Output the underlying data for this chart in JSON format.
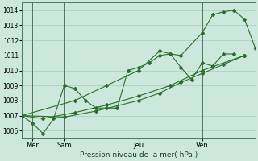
{
  "background_color": "#cce8dd",
  "grid_color": "#aaccbb",
  "line_color": "#2a6e2a",
  "title": "Pression niveau de la mer( hPa )",
  "ylabel_ticks": [
    1006,
    1007,
    1008,
    1009,
    1010,
    1011,
    1012,
    1013,
    1014
  ],
  "ylim": [
    1005.5,
    1014.5
  ],
  "xlim": [
    0,
    22
  ],
  "xticklabels": [
    "Mer",
    "Sam",
    "Jeu",
    "Ven"
  ],
  "xtick_positions": [
    1,
    4,
    11,
    17
  ],
  "vlines": [
    1,
    4,
    11,
    17
  ],
  "series": [
    {
      "x": [
        0,
        1,
        2,
        3,
        4,
        5,
        6,
        7,
        8,
        9,
        10,
        11,
        12,
        13,
        14,
        15,
        16,
        17,
        18,
        19,
        20
      ],
      "y": [
        1007.0,
        1006.5,
        1005.8,
        1006.8,
        1009.0,
        1008.8,
        1008.0,
        1007.5,
        1007.5,
        1007.5,
        1010.0,
        1010.2,
        1010.5,
        1011.0,
        1011.1,
        1010.2,
        1009.4,
        1010.5,
        1010.3,
        1011.1,
        1011.1
      ]
    },
    {
      "x": [
        0,
        2,
        5,
        8,
        11,
        14,
        17,
        21
      ],
      "y": [
        1007.0,
        1006.8,
        1007.2,
        1007.7,
        1008.3,
        1009.0,
        1010.0,
        1011.0
      ]
    },
    {
      "x": [
        0,
        4,
        7,
        11,
        13,
        15,
        17,
        19,
        21
      ],
      "y": [
        1007.0,
        1006.9,
        1007.3,
        1008.0,
        1008.5,
        1009.2,
        1009.8,
        1010.4,
        1011.0
      ]
    },
    {
      "x": [
        0,
        5,
        8,
        11,
        13,
        14,
        15,
        17,
        18,
        19,
        20,
        21,
        22
      ],
      "y": [
        1007.0,
        1008.0,
        1009.0,
        1010.0,
        1011.3,
        1011.1,
        1011.0,
        1012.5,
        1013.7,
        1013.9,
        1014.0,
        1013.4,
        1011.5
      ]
    }
  ],
  "figsize": [
    3.2,
    2.0
  ],
  "dpi": 100
}
